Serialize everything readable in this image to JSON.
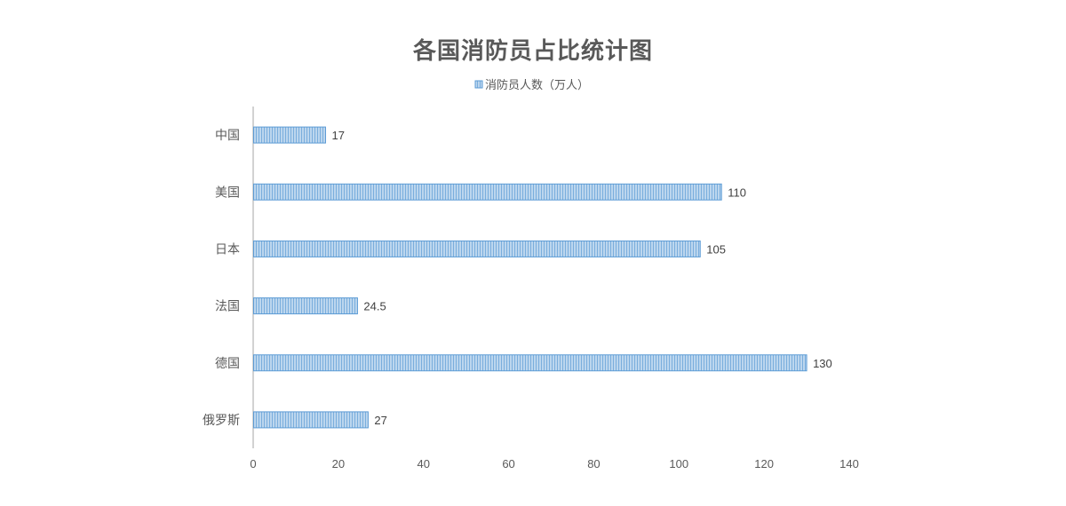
{
  "chart_data": {
    "type": "bar",
    "orientation": "horizontal",
    "title": "各国消防员占比统计图",
    "categories": [
      "中国",
      "美国",
      "日本",
      "法国",
      "德国",
      "俄罗斯"
    ],
    "series": [
      {
        "name": "消防员人数（万人）",
        "values": [
          17,
          110,
          105,
          24.5,
          130,
          27
        ]
      }
    ],
    "xlim": [
      0,
      140
    ],
    "xticks": [
      0,
      20,
      40,
      60,
      80,
      100,
      120,
      140
    ],
    "grid": false,
    "legend_position": "top",
    "data_labels_shown": true,
    "colors": {
      "bar_fill": "#bcd6ee",
      "bar_hatch": "#7aaedd",
      "bar_stroke": "#5b9bd5",
      "axis": "#a6a6a6",
      "text": "#595959"
    }
  }
}
